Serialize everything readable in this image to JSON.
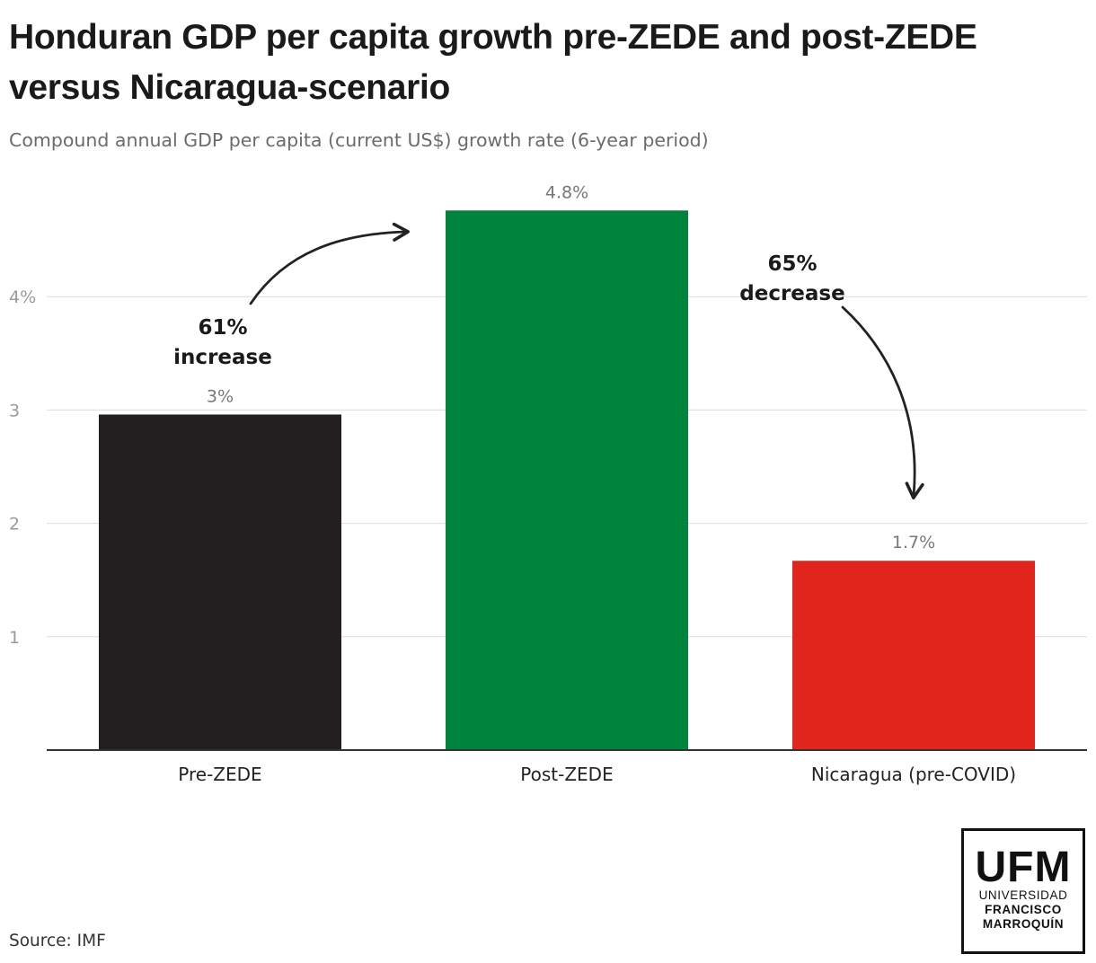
{
  "title": "Honduran GDP per capita growth pre-ZEDE and post-ZEDE versus Nicaragua-scenario",
  "subtitle": "Compound annual GDP per capita (current US$) growth rate (6-year period)",
  "source": "Source: IMF",
  "logo": {
    "abbr": "UFM",
    "line1": "UNIVERSIDAD",
    "line2": "FRANCISCO",
    "line3": "MARROQUÍN"
  },
  "chart_data": {
    "type": "bar",
    "title": "Honduran GDP per capita growth pre-ZEDE and post-ZEDE versus Nicaragua-scenario",
    "subtitle": "Compound annual GDP per capita (current US$) growth rate (6-year period)",
    "xlabel": "",
    "ylabel": "",
    "categories": [
      "Pre-ZEDE",
      "Post-ZEDE",
      "Nicaragua (pre-COVID)"
    ],
    "values": [
      2.96,
      4.76,
      1.67
    ],
    "value_labels": [
      "3%",
      "4.8%",
      "1.7%"
    ],
    "colors": [
      "#231f20",
      "#00843d",
      "#e0261c"
    ],
    "ylim": [
      0,
      5
    ],
    "yticks": [
      1,
      2,
      3,
      4
    ],
    "ytick_labels": [
      "1",
      "2",
      "3",
      "4%"
    ],
    "grid": true,
    "annotations": [
      {
        "line1": "61%",
        "line2": "increase",
        "from": "Pre-ZEDE",
        "to": "Post-ZEDE"
      },
      {
        "line1": "65%",
        "line2": "decrease",
        "from": "Post-ZEDE",
        "to": "Nicaragua (pre-COVID)"
      }
    ]
  }
}
